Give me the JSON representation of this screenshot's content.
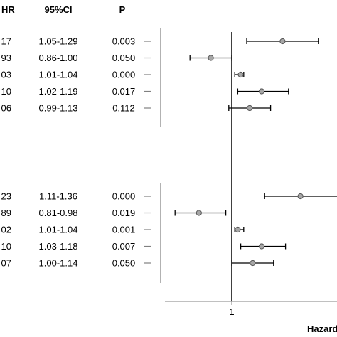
{
  "chart_data": {
    "type": "forest",
    "columns": {
      "hr": "HR",
      "ci": "95%CI",
      "p": "P"
    },
    "x_axis": {
      "reference_tick": "1",
      "reference_value": 1.0,
      "label": "Hazard",
      "xlim": [
        0.65,
        1.45
      ]
    },
    "groups": [
      {
        "rows": [
          {
            "hr_text": "17",
            "hr": 1.17,
            "ci_text": "1.05-1.29",
            "lo": 1.05,
            "hi": 1.29,
            "p_text": "0.003"
          },
          {
            "hr_text": "93",
            "hr": 0.93,
            "ci_text": "0.86-1.00",
            "lo": 0.86,
            "hi": 1.0,
            "p_text": "0.050"
          },
          {
            "hr_text": "03",
            "hr": 1.03,
            "ci_text": "1.01-1.04",
            "lo": 1.01,
            "hi": 1.04,
            "p_text": "0.000"
          },
          {
            "hr_text": "10",
            "hr": 1.1,
            "ci_text": "1.02-1.19",
            "lo": 1.02,
            "hi": 1.19,
            "p_text": "0.017"
          },
          {
            "hr_text": "06",
            "hr": 1.06,
            "ci_text": "0.99-1.13",
            "lo": 0.99,
            "hi": 1.13,
            "p_text": "0.112"
          }
        ]
      },
      {
        "rows": [
          {
            "hr_text": "23",
            "hr": 1.23,
            "ci_text": "1.11-1.36",
            "lo": 1.11,
            "hi": 1.36,
            "p_text": "0.000"
          },
          {
            "hr_text": "89",
            "hr": 0.89,
            "ci_text": "0.81-0.98",
            "lo": 0.81,
            "hi": 0.98,
            "p_text": "0.019"
          },
          {
            "hr_text": "02",
            "hr": 1.02,
            "ci_text": "1.01-1.04",
            "lo": 1.01,
            "hi": 1.04,
            "p_text": "0.001"
          },
          {
            "hr_text": "10",
            "hr": 1.1,
            "ci_text": "1.03-1.18",
            "lo": 1.03,
            "hi": 1.18,
            "p_text": "0.007"
          },
          {
            "hr_text": "07",
            "hr": 1.07,
            "ci_text": "1.00-1.14",
            "lo": 1.0,
            "hi": 1.14,
            "p_text": "0.050"
          }
        ]
      }
    ],
    "colors": {
      "marker_fill": "#a6a6a6",
      "line": "#000000",
      "separator": "#808080"
    }
  }
}
